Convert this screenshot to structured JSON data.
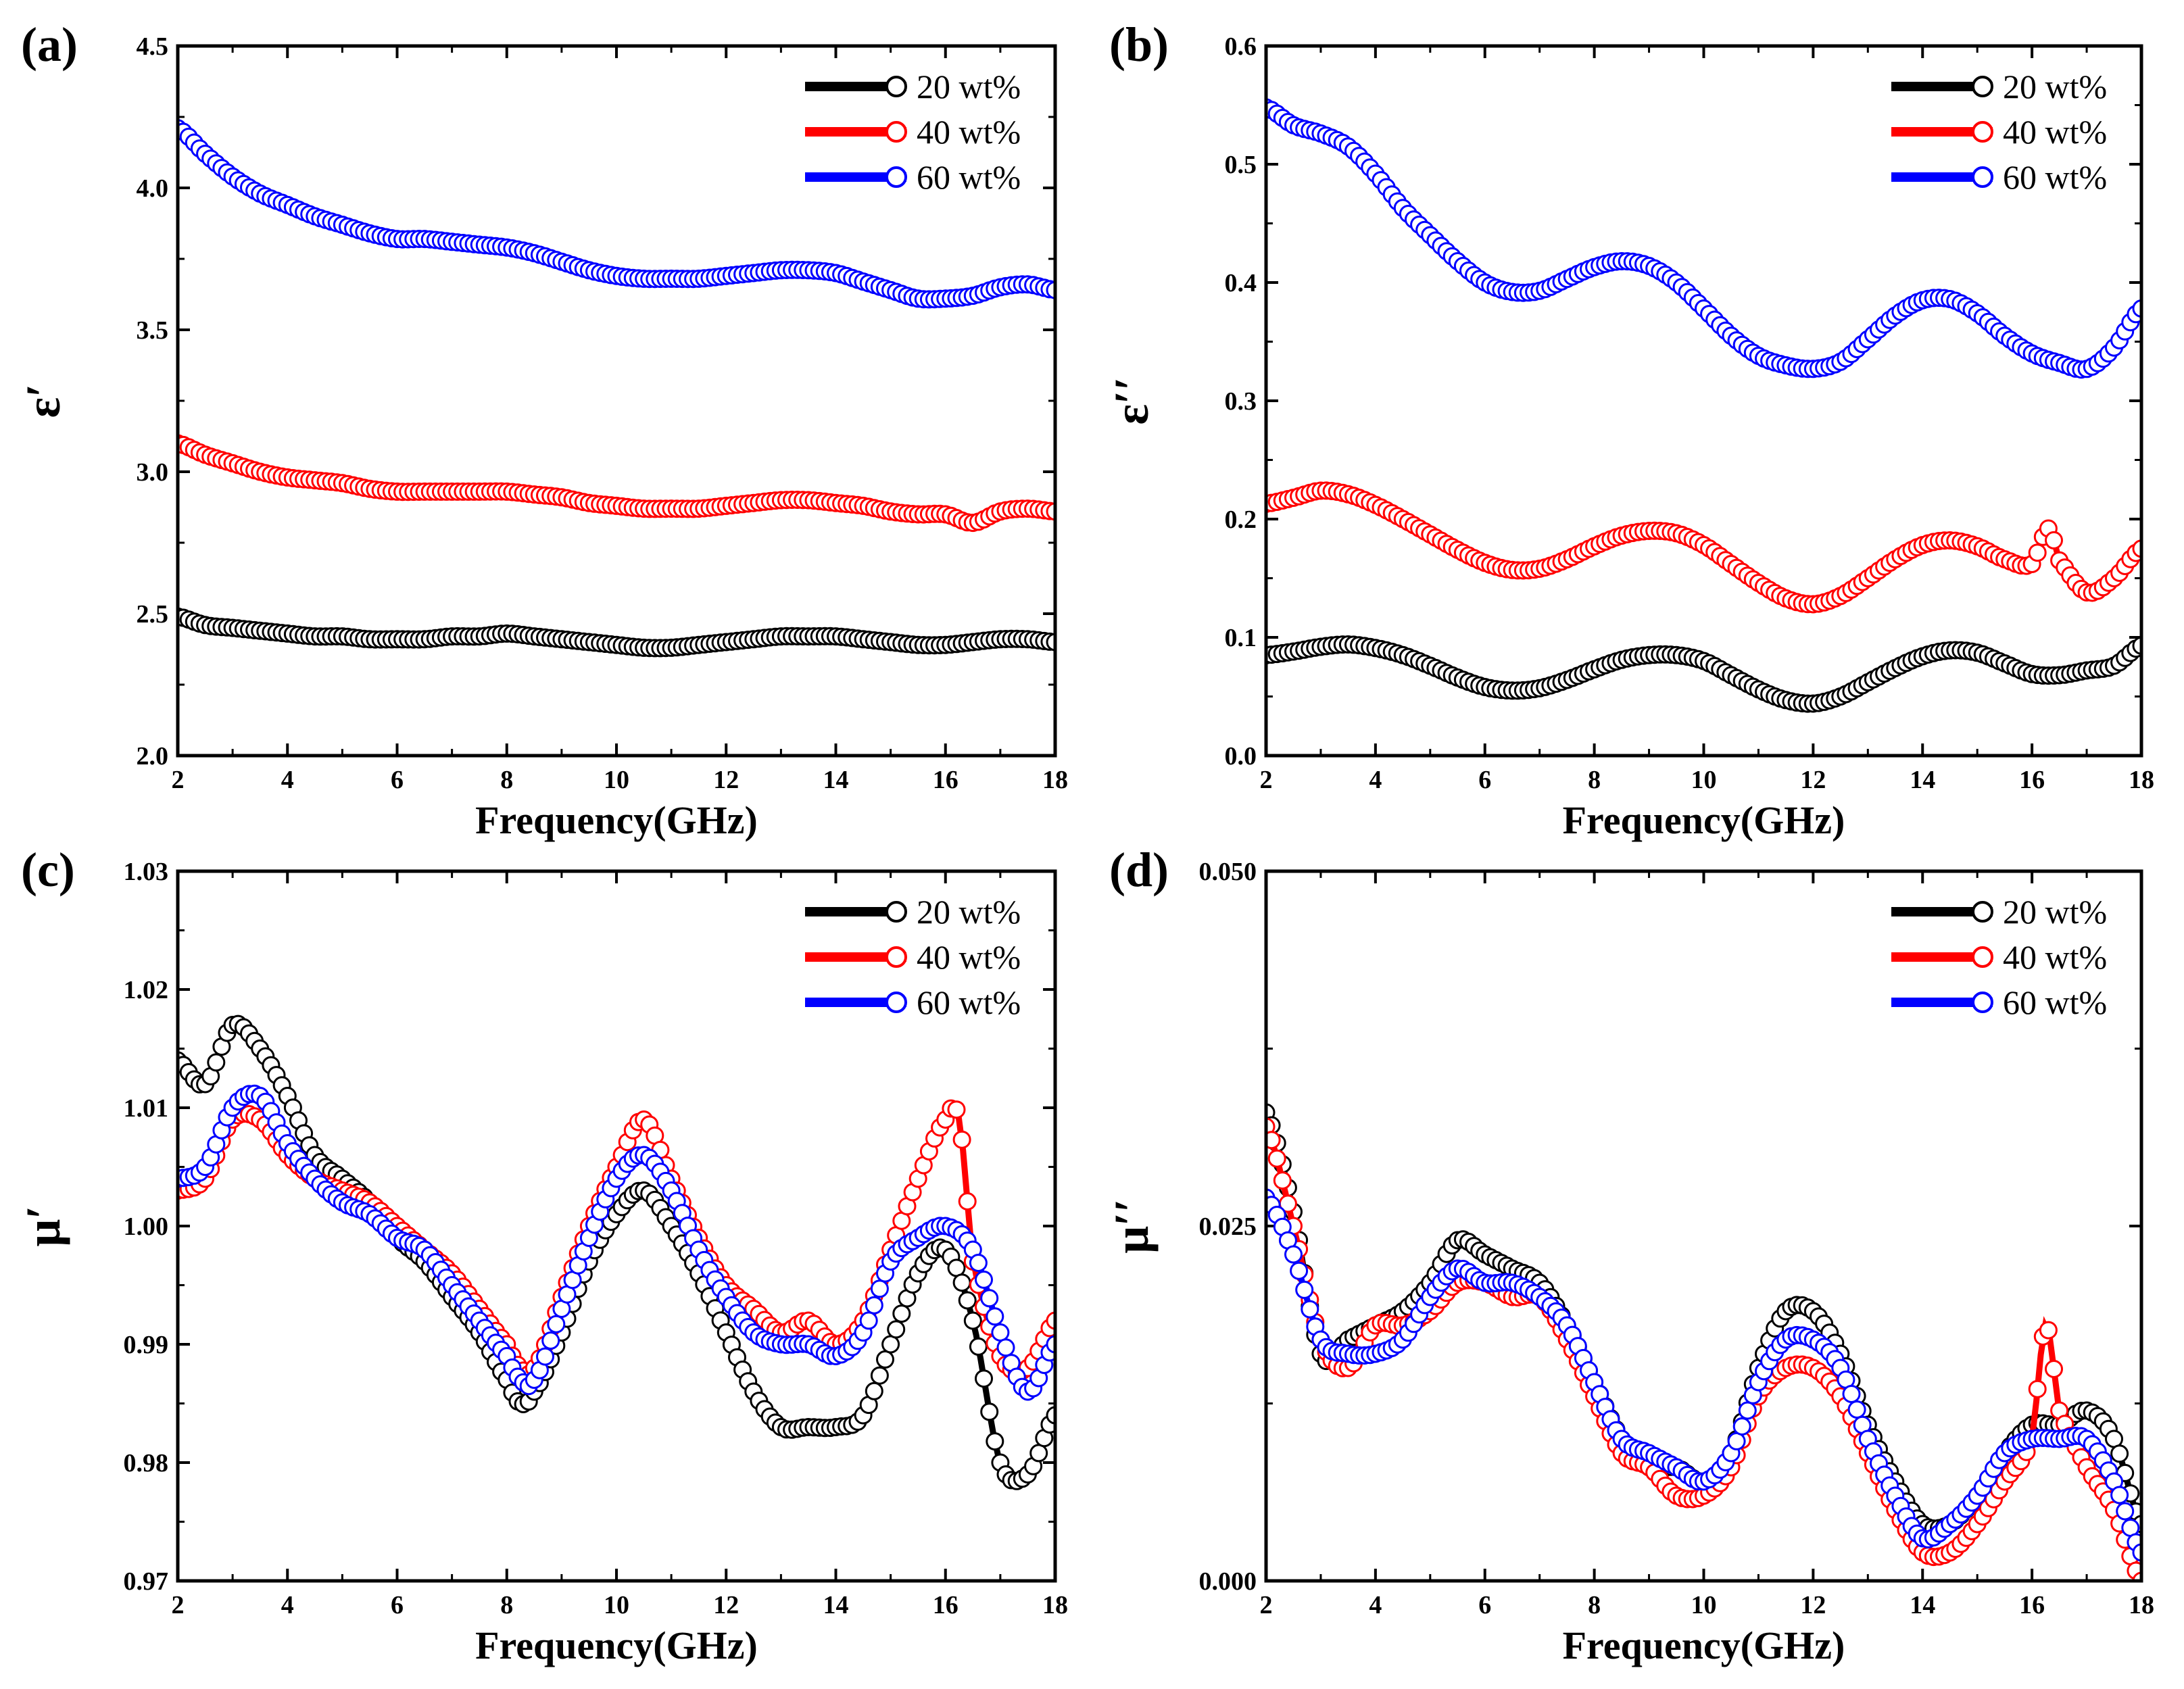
{
  "chart_data": [
    {
      "panel": "(a)",
      "type": "scatter",
      "xlabel": "Frequency(GHz)",
      "ylabel": "ε′",
      "xlim": [
        2,
        18
      ],
      "ylim": [
        2.0,
        4.5
      ],
      "xticks": [
        "2",
        "4",
        "6",
        "8",
        "10",
        "12",
        "14",
        "16",
        "18"
      ],
      "yticks": [
        "2.0",
        "2.5",
        "3.0",
        "3.5",
        "4.0",
        "4.5"
      ],
      "legend_position": "top-right",
      "series": [
        {
          "name": "20 wt%",
          "color": "#000000",
          "x": [
            2,
            2.5,
            3,
            3.5,
            4,
            4.5,
            5,
            5.5,
            6,
            6.5,
            7,
            7.5,
            8,
            8.5,
            9,
            9.5,
            10,
            10.5,
            11,
            11.5,
            12,
            12.5,
            13,
            13.5,
            14,
            14.5,
            15,
            15.5,
            16,
            16.5,
            17,
            17.5,
            18
          ],
          "y": [
            2.49,
            2.46,
            2.45,
            2.44,
            2.43,
            2.42,
            2.42,
            2.41,
            2.41,
            2.41,
            2.42,
            2.42,
            2.43,
            2.42,
            2.41,
            2.4,
            2.39,
            2.38,
            2.38,
            2.39,
            2.4,
            2.41,
            2.42,
            2.42,
            2.42,
            2.41,
            2.4,
            2.39,
            2.39,
            2.4,
            2.41,
            2.41,
            2.4
          ]
        },
        {
          "name": "40 wt%",
          "color": "#ff0000",
          "x": [
            2,
            2.5,
            3,
            3.5,
            4,
            4.5,
            5,
            5.5,
            6,
            6.5,
            7,
            7.5,
            8,
            8.5,
            9,
            9.5,
            10,
            10.5,
            11,
            11.5,
            12,
            12.5,
            13,
            13.5,
            14,
            14.5,
            15,
            15.5,
            16,
            16.5,
            17,
            17.5,
            18
          ],
          "y": [
            3.1,
            3.06,
            3.03,
            3.0,
            2.98,
            2.97,
            2.96,
            2.94,
            2.93,
            2.93,
            2.93,
            2.93,
            2.93,
            2.92,
            2.91,
            2.89,
            2.88,
            2.87,
            2.87,
            2.87,
            2.88,
            2.89,
            2.9,
            2.9,
            2.89,
            2.88,
            2.86,
            2.85,
            2.85,
            2.82,
            2.86,
            2.87,
            2.86
          ]
        },
        {
          "name": "60 wt%",
          "color": "#0000ff",
          "x": [
            2,
            2.5,
            3,
            3.5,
            4,
            4.5,
            5,
            5.5,
            6,
            6.5,
            7,
            7.5,
            8,
            8.5,
            9,
            9.5,
            10,
            10.5,
            11,
            11.5,
            12,
            12.5,
            13,
            13.5,
            14,
            14.5,
            15,
            15.5,
            16,
            16.5,
            17,
            17.5,
            18
          ],
          "y": [
            4.21,
            4.12,
            4.04,
            3.98,
            3.94,
            3.9,
            3.87,
            3.84,
            3.82,
            3.82,
            3.81,
            3.8,
            3.79,
            3.77,
            3.74,
            3.71,
            3.69,
            3.68,
            3.68,
            3.68,
            3.69,
            3.7,
            3.71,
            3.71,
            3.7,
            3.67,
            3.64,
            3.61,
            3.61,
            3.62,
            3.65,
            3.66,
            3.64
          ]
        }
      ]
    },
    {
      "panel": "(b)",
      "type": "scatter",
      "xlabel": "Frequency(GHz)",
      "ylabel": "ε′′",
      "xlim": [
        2,
        18
      ],
      "ylim": [
        0.0,
        0.6
      ],
      "xticks": [
        "2",
        "4",
        "6",
        "8",
        "10",
        "12",
        "14",
        "16",
        "18"
      ],
      "yticks": [
        "0.0",
        "0.1",
        "0.2",
        "0.3",
        "0.4",
        "0.5",
        "0.6"
      ],
      "legend_position": "top-right",
      "series": [
        {
          "name": "20 wt%",
          "color": "#000000",
          "x": [
            2,
            2.5,
            3,
            3.5,
            4,
            4.5,
            5,
            5.5,
            6,
            6.5,
            7,
            7.5,
            8,
            8.5,
            9,
            9.5,
            10,
            10.5,
            11,
            11.5,
            12,
            12.5,
            13,
            13.5,
            14,
            14.5,
            15,
            15.5,
            16,
            16.5,
            17,
            17.5,
            18
          ],
          "y": [
            0.085,
            0.088,
            0.092,
            0.094,
            0.091,
            0.085,
            0.076,
            0.066,
            0.058,
            0.055,
            0.057,
            0.064,
            0.073,
            0.081,
            0.085,
            0.085,
            0.08,
            0.068,
            0.056,
            0.047,
            0.044,
            0.05,
            0.062,
            0.074,
            0.084,
            0.089,
            0.087,
            0.078,
            0.069,
            0.068,
            0.072,
            0.076,
            0.093
          ]
        },
        {
          "name": "40 wt%",
          "color": "#ff0000",
          "x": [
            2,
            2.5,
            3,
            3.5,
            4,
            4.5,
            5,
            5.5,
            6,
            6.5,
            7,
            7.5,
            8,
            8.5,
            9,
            9.5,
            10,
            10.5,
            11,
            11.5,
            12,
            12.5,
            13,
            13.5,
            14,
            14.5,
            15,
            15.5,
            16,
            16.3,
            16.5,
            17,
            17.5,
            18
          ],
          "y": [
            0.213,
            0.218,
            0.224,
            0.221,
            0.212,
            0.2,
            0.187,
            0.174,
            0.163,
            0.157,
            0.158,
            0.166,
            0.177,
            0.186,
            0.19,
            0.188,
            0.178,
            0.162,
            0.146,
            0.133,
            0.128,
            0.135,
            0.15,
            0.166,
            0.178,
            0.182,
            0.177,
            0.166,
            0.162,
            0.192,
            0.165,
            0.138,
            0.15,
            0.175
          ]
        },
        {
          "name": "60 wt%",
          "color": "#0000ff",
          "x": [
            2,
            2.5,
            3,
            3.5,
            4,
            4.5,
            5,
            5.5,
            6,
            6.5,
            7,
            7.5,
            8,
            8.5,
            9,
            9.5,
            10,
            10.5,
            11,
            11.5,
            12,
            12.5,
            13,
            13.5,
            14,
            14.5,
            15,
            15.5,
            16,
            16.5,
            17,
            17.5,
            18
          ],
          "y": [
            0.548,
            0.533,
            0.526,
            0.515,
            0.492,
            0.463,
            0.44,
            0.418,
            0.4,
            0.392,
            0.393,
            0.403,
            0.413,
            0.418,
            0.414,
            0.4,
            0.378,
            0.355,
            0.338,
            0.33,
            0.327,
            0.333,
            0.352,
            0.372,
            0.385,
            0.386,
            0.374,
            0.355,
            0.34,
            0.332,
            0.327,
            0.345,
            0.378
          ]
        }
      ]
    },
    {
      "panel": "(c)",
      "type": "scatter",
      "xlabel": "Frequency(GHz)",
      "ylabel": "μ′",
      "xlim": [
        2,
        18
      ],
      "ylim": [
        0.97,
        1.03
      ],
      "xticks": [
        "2",
        "4",
        "6",
        "8",
        "10",
        "12",
        "14",
        "16",
        "18"
      ],
      "yticks": [
        "0.97",
        "0.98",
        "0.99",
        "1.00",
        "1.01",
        "1.02",
        "1.03"
      ],
      "legend_position": "top-right",
      "series": [
        {
          "name": "20 wt%",
          "color": "#000000",
          "x": [
            2,
            2.5,
            3,
            3.5,
            4,
            4.5,
            5,
            5.5,
            6,
            6.5,
            7,
            7.5,
            8,
            8.25,
            8.5,
            9,
            9.5,
            10,
            10.5,
            11,
            11.5,
            12,
            12.5,
            13,
            13.5,
            14,
            14.5,
            15,
            15.5,
            16,
            16.5,
            17,
            17.5,
            18
          ],
          "y": [
            1.014,
            1.012,
            1.017,
            1.015,
            1.011,
            1.006,
            1.004,
            1.002,
            0.999,
            0.997,
            0.994,
            0.991,
            0.987,
            0.985,
            0.986,
            0.991,
            0.997,
            1.001,
            1.003,
            1.0,
            0.996,
            0.991,
            0.986,
            0.983,
            0.983,
            0.983,
            0.984,
            0.99,
            0.996,
            0.998,
            0.992,
            0.98,
            0.979,
            0.984
          ]
        },
        {
          "name": "40 wt%",
          "color": "#ff0000",
          "x": [
            2,
            2.5,
            3,
            3.5,
            4,
            4.5,
            5,
            5.5,
            6,
            6.5,
            7,
            7.5,
            8,
            8.25,
            8.5,
            9,
            9.5,
            10,
            10.5,
            11,
            11.5,
            12,
            12.5,
            13,
            13.5,
            14,
            14.5,
            15,
            15.5,
            16,
            16.25,
            16.5,
            17,
            17.5,
            18
          ],
          "y": [
            1.003,
            1.004,
            1.009,
            1.009,
            1.006,
            1.004,
            1.003,
            1.002,
            1.0,
            0.998,
            0.996,
            0.993,
            0.99,
            0.988,
            0.988,
            0.994,
            1.0,
            1.005,
            1.009,
            1.004,
            0.999,
            0.995,
            0.993,
            0.991,
            0.992,
            0.99,
            0.992,
            0.998,
            1.004,
            1.009,
            1.009,
            0.997,
            0.989,
            0.988,
            0.992
          ]
        },
        {
          "name": "60 wt%",
          "color": "#0000ff",
          "x": [
            2,
            2.5,
            3,
            3.5,
            4,
            4.5,
            5,
            5.5,
            6,
            6.5,
            7,
            7.5,
            8,
            8.25,
            8.5,
            9,
            9.5,
            10,
            10.5,
            11,
            11.5,
            12,
            12.5,
            13,
            13.5,
            14,
            14.5,
            15,
            15.5,
            16,
            16.5,
            17,
            17.5,
            18
          ],
          "y": [
            1.004,
            1.005,
            1.01,
            1.011,
            1.007,
            1.004,
            1.002,
            1.001,
            0.999,
            0.998,
            0.995,
            0.992,
            0.989,
            0.987,
            0.987,
            0.993,
            0.999,
            1.004,
            1.006,
            1.003,
            0.998,
            0.994,
            0.991,
            0.99,
            0.99,
            0.989,
            0.991,
            0.997,
            0.999,
            1.0,
            0.998,
            0.991,
            0.986,
            0.99
          ]
        }
      ]
    },
    {
      "panel": "(d)",
      "type": "scatter",
      "xlabel": "Frequency(GHz)",
      "ylabel": "μ′′",
      "xlim": [
        2,
        18
      ],
      "ylim": [
        0.0,
        0.05
      ],
      "xticks": [
        "2",
        "4",
        "6",
        "8",
        "10",
        "12",
        "14",
        "16",
        "18"
      ],
      "yticks": [
        "0.000",
        "0.025",
        "0.050"
      ],
      "legend_position": "top-right",
      "series": [
        {
          "name": "20 wt%",
          "color": "#000000",
          "x": [
            2,
            2.5,
            3,
            3.5,
            4,
            4.5,
            5,
            5.5,
            6,
            6.5,
            7,
            7.5,
            8,
            8.5,
            9,
            9.5,
            10,
            10.5,
            11,
            11.5,
            12,
            12.5,
            13,
            13.5,
            14,
            14.5,
            15,
            15.5,
            16,
            16.5,
            17,
            17.5,
            18
          ],
          "y": [
            0.033,
            0.026,
            0.016,
            0.017,
            0.018,
            0.019,
            0.021,
            0.024,
            0.023,
            0.022,
            0.021,
            0.018,
            0.014,
            0.01,
            0.008,
            0.008,
            0.007,
            0.009,
            0.015,
            0.019,
            0.019,
            0.016,
            0.011,
            0.007,
            0.004,
            0.004,
            0.006,
            0.009,
            0.011,
            0.011,
            0.012,
            0.01,
            0.004
          ]
        },
        {
          "name": "40 wt%",
          "color": "#ff0000",
          "x": [
            2,
            2.5,
            3,
            3.5,
            4,
            4.5,
            5,
            5.5,
            6,
            6.5,
            7,
            7.5,
            8,
            8.5,
            9,
            9.5,
            10,
            10.5,
            11,
            11.5,
            12,
            12.5,
            13,
            13.5,
            14,
            14.5,
            15,
            15.5,
            16,
            16.25,
            16.5,
            17,
            17.5,
            18
          ],
          "y": [
            0.032,
            0.025,
            0.017,
            0.015,
            0.018,
            0.018,
            0.019,
            0.021,
            0.021,
            0.02,
            0.02,
            0.017,
            0.013,
            0.009,
            0.008,
            0.006,
            0.006,
            0.008,
            0.013,
            0.015,
            0.015,
            0.013,
            0.009,
            0.005,
            0.002,
            0.002,
            0.004,
            0.007,
            0.01,
            0.018,
            0.012,
            0.008,
            0.005,
            0.0
          ]
        },
        {
          "name": "60 wt%",
          "color": "#0000ff",
          "x": [
            2,
            2.5,
            3,
            3.5,
            4,
            4.5,
            5,
            5.5,
            6,
            6.5,
            7,
            7.5,
            8,
            8.5,
            9,
            9.5,
            10,
            10.5,
            11,
            11.5,
            12,
            12.5,
            13,
            13.5,
            14,
            14.5,
            15,
            15.5,
            16,
            16.5,
            17,
            17.5,
            18
          ],
          "y": [
            0.027,
            0.023,
            0.017,
            0.016,
            0.016,
            0.017,
            0.02,
            0.022,
            0.021,
            0.021,
            0.02,
            0.018,
            0.014,
            0.01,
            0.009,
            0.008,
            0.007,
            0.009,
            0.014,
            0.017,
            0.017,
            0.015,
            0.01,
            0.006,
            0.003,
            0.004,
            0.006,
            0.009,
            0.01,
            0.01,
            0.01,
            0.007,
            0.002
          ]
        }
      ]
    }
  ]
}
